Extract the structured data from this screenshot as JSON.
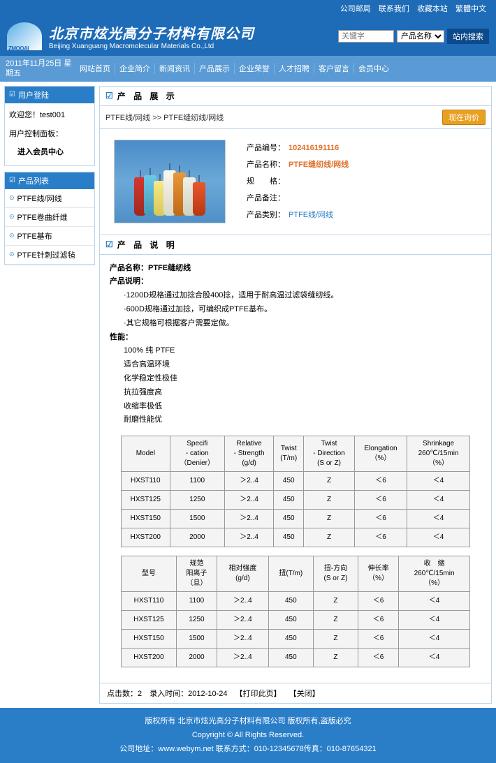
{
  "topLinks": [
    "公司邮局",
    "联系我们",
    "收藏本站",
    "繁體中文"
  ],
  "company": {
    "cn": "北京市炫光高分子材料有限公司",
    "en": "Beijing Xuanguang Macromolecular Materials Co.,Ltd"
  },
  "search": {
    "placeholder": "关键字",
    "selectLabel": "产品名称",
    "btn": "站内搜索"
  },
  "date": "2011年11月25日 星期五",
  "nav": [
    "网站首页",
    "企业简介",
    "新闻资讯",
    "产品展示",
    "企业荣誉",
    "人才招聘",
    "客户留言",
    "会员中心"
  ],
  "sidebar": {
    "loginTitle": "用户登陆",
    "welcome": "欢迎您！test001",
    "panelLabel": "用户控制面板：",
    "enterCenter": "进入会员中心",
    "listTitle": "产品列表",
    "items": [
      "PTFE线/网线",
      "PTFE卷曲纤维",
      "PTFE基布",
      "PTFE针刺过滤毡"
    ]
  },
  "content": {
    "title": "产 品 展 示",
    "breadcrumb": {
      "cat": "PTFE线/网线",
      "sep": " >> ",
      "item": "PTFE缝纫线/网线"
    },
    "inquiryBtn": "现在询价",
    "product": {
      "numLabel": "产品编号：",
      "num": "102416191116",
      "nameLabel": "产品名称：",
      "name": "PTFE缝纫线/网线",
      "specLabel": "规　　格：",
      "spec": "",
      "remarkLabel": "产品备注：",
      "remark": "",
      "catLabel": "产品类别：",
      "cat": "PTFE线/网线"
    },
    "descTitle": "产 品 说 明",
    "desc": {
      "nameLine": "产品名称：PTFE缝纫线",
      "descLabel": "产品说明：",
      "bullets": [
        "·1200D规格通过加捻合股400捻，适用于耐高温过滤袋缝纫线。",
        "·600D规格通过加捻，可编织成PTFE基布。",
        "·其它规格可根据客户需要定做。"
      ],
      "perfLabel": "性能：",
      "perfs": [
        "100% 纯 PTFE",
        "适合高温环境",
        "化学稳定性极佳",
        "抗拉强度高",
        "收缩率极低",
        "耐磨性能优"
      ]
    },
    "table1": {
      "headers": [
        "Model",
        "Specifi\n- cation\n（Denier）",
        "Relative\n- Strength\n(g/d)",
        "Twist\n(T/m)",
        "Twist\n- Direction\n(S or Z)",
        "Elongation\n（%）",
        "Shrinkage\n260℃/15min\n（%）"
      ],
      "rows": [
        [
          "HXST110",
          "1100",
          "＞2..4",
          "450",
          "Z",
          "＜6",
          "＜4"
        ],
        [
          "HXST125",
          "1250",
          "＞2..4",
          "450",
          "Z",
          "＜6",
          "＜4"
        ],
        [
          "HXST150",
          "1500",
          "＞2..4",
          "450",
          "Z",
          "＜6",
          "＜4"
        ],
        [
          "HXST200",
          "2000",
          "＞2..4",
          "450",
          "Z",
          "＜6",
          "＜4"
        ]
      ]
    },
    "table2": {
      "headers": [
        "型号",
        "规范\n阳离子\n（旦）",
        "相对强度\n(g/d)",
        "扭(T/m)",
        "扭-方向\n(S or Z)",
        "伸长率\n（%）",
        "收　缩\n260℃/15min\n（%）"
      ],
      "rows": [
        [
          "HXST110",
          "1100",
          "＞2..4",
          "450",
          "Z",
          "＜6",
          "＜4"
        ],
        [
          "HXST125",
          "1250",
          "＞2..4",
          "450",
          "Z",
          "＜6",
          "＜4"
        ],
        [
          "HXST150",
          "1500",
          "＞2..4",
          "450",
          "Z",
          "＜6",
          "＜4"
        ],
        [
          "HXST200",
          "2000",
          "＞2..4",
          "450",
          "Z",
          "＜6",
          "＜4"
        ]
      ]
    },
    "meta": {
      "hits": "点击数：2",
      "time": "录入时间：2012-10-24",
      "print": "【打印此页】",
      "close": "【关闭】"
    }
  },
  "footer": {
    "line1": "版权所有 北京市炫光高分子材料有限公司 版权所有,盗版必究",
    "line2": "Copyright © All Rights Reserved.",
    "line3": "公司地址：www.webym.net 联系方式：010-12345678传真：010-87654321"
  }
}
